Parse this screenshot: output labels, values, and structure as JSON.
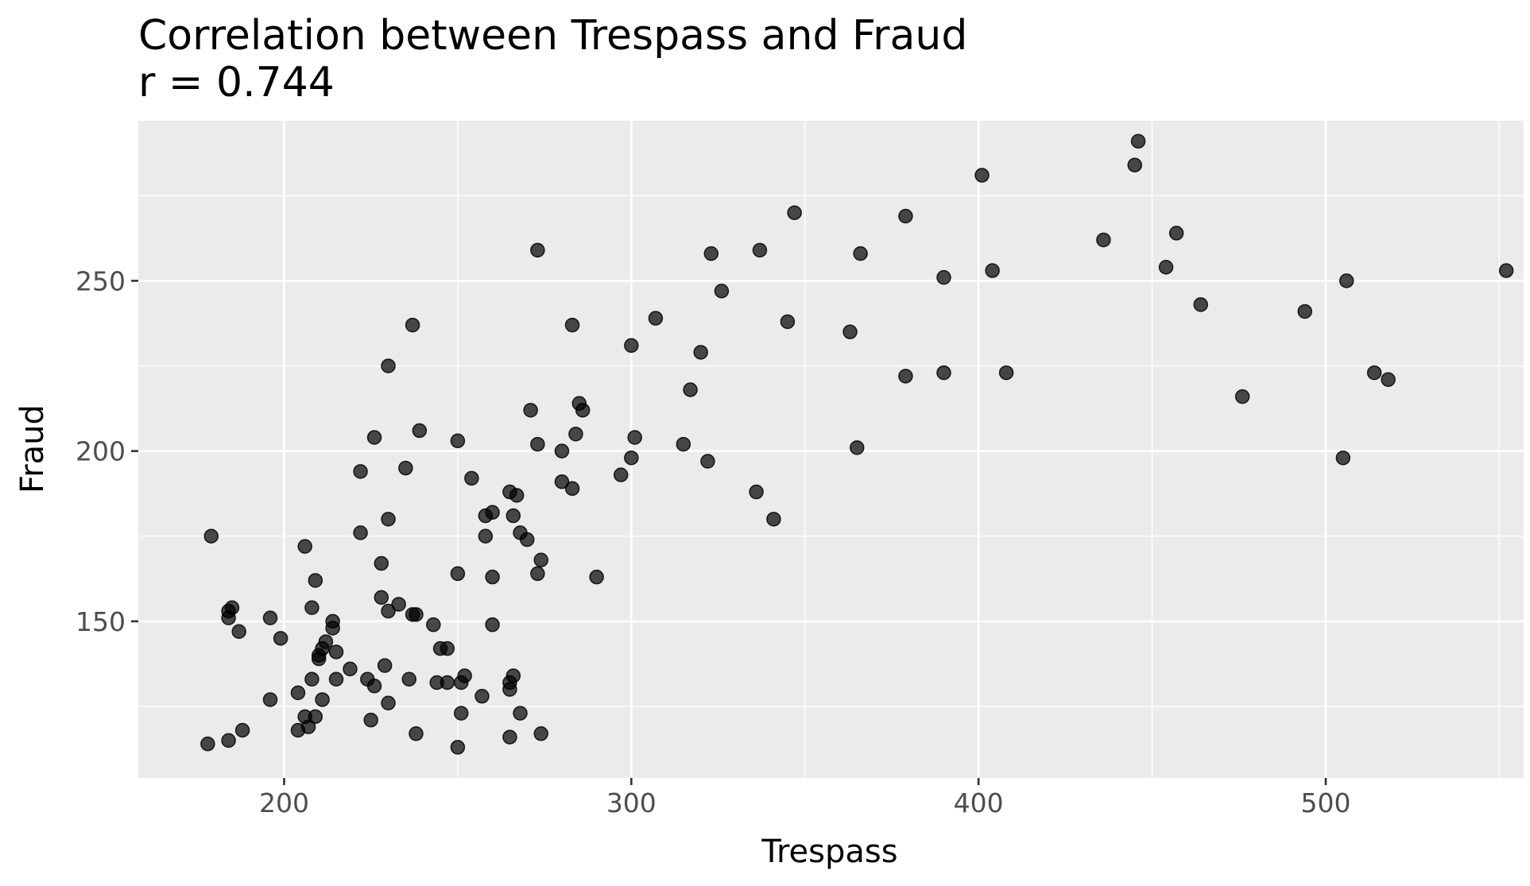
{
  "chart_data": {
    "type": "scatter",
    "title": "Correlation between Trespass and Fraud",
    "subtitle": "r = 0.744",
    "xlabel": "Trespass",
    "ylabel": "Fraud",
    "xlim": [
      158,
      557
    ],
    "ylim": [
      104,
      297
    ],
    "x_ticks": [
      200,
      300,
      400,
      500
    ],
    "y_ticks": [
      150,
      200,
      250
    ],
    "x_tick_labels": [
      "200",
      "300",
      "400",
      "500"
    ],
    "y_tick_labels": [
      "150",
      "200",
      "250"
    ],
    "grid": true,
    "background": "#ebebeb",
    "point_color": "#000000",
    "points": [
      [
        178,
        114
      ],
      [
        179,
        175
      ],
      [
        184,
        115
      ],
      [
        184,
        151
      ],
      [
        184,
        153
      ],
      [
        185,
        154
      ],
      [
        187,
        147
      ],
      [
        188,
        118
      ],
      [
        196,
        127
      ],
      [
        196,
        151
      ],
      [
        199,
        145
      ],
      [
        204,
        118
      ],
      [
        204,
        129
      ],
      [
        206,
        122
      ],
      [
        206,
        172
      ],
      [
        207,
        119
      ],
      [
        208,
        154
      ],
      [
        208,
        133
      ],
      [
        209,
        122
      ],
      [
        209,
        162
      ],
      [
        210,
        139
      ],
      [
        210,
        140
      ],
      [
        211,
        142
      ],
      [
        211,
        127
      ],
      [
        212,
        144
      ],
      [
        214,
        150
      ],
      [
        214,
        148
      ],
      [
        215,
        141
      ],
      [
        215,
        133
      ],
      [
        219,
        136
      ],
      [
        222,
        194
      ],
      [
        222,
        176
      ],
      [
        224,
        133
      ],
      [
        225,
        121
      ],
      [
        226,
        204
      ],
      [
        226,
        131
      ],
      [
        228,
        167
      ],
      [
        228,
        157
      ],
      [
        229,
        137
      ],
      [
        230,
        225
      ],
      [
        230,
        180
      ],
      [
        230,
        153
      ],
      [
        230,
        126
      ],
      [
        233,
        155
      ],
      [
        235,
        195
      ],
      [
        236,
        133
      ],
      [
        237,
        152
      ],
      [
        237,
        237
      ],
      [
        238,
        152
      ],
      [
        238,
        117
      ],
      [
        239,
        206
      ],
      [
        243,
        149
      ],
      [
        244,
        132
      ],
      [
        245,
        142
      ],
      [
        247,
        142
      ],
      [
        247,
        132
      ],
      [
        250,
        203
      ],
      [
        250,
        164
      ],
      [
        250,
        113
      ],
      [
        251,
        132
      ],
      [
        251,
        123
      ],
      [
        252,
        134
      ],
      [
        254,
        192
      ],
      [
        257,
        128
      ],
      [
        258,
        175
      ],
      [
        258,
        181
      ],
      [
        260,
        182
      ],
      [
        260,
        163
      ],
      [
        260,
        149
      ],
      [
        265,
        188
      ],
      [
        265,
        130
      ],
      [
        265,
        132
      ],
      [
        265,
        116
      ],
      [
        266,
        181
      ],
      [
        266,
        134
      ],
      [
        267,
        187
      ],
      [
        268,
        176
      ],
      [
        268,
        123
      ],
      [
        270,
        174
      ],
      [
        271,
        212
      ],
      [
        273,
        259
      ],
      [
        273,
        202
      ],
      [
        273,
        164
      ],
      [
        274,
        168
      ],
      [
        274,
        117
      ],
      [
        280,
        200
      ],
      [
        280,
        191
      ],
      [
        283,
        237
      ],
      [
        283,
        189
      ],
      [
        284,
        205
      ],
      [
        285,
        214
      ],
      [
        286,
        212
      ],
      [
        290,
        163
      ],
      [
        297,
        193
      ],
      [
        300,
        231
      ],
      [
        300,
        198
      ],
      [
        301,
        204
      ],
      [
        307,
        239
      ],
      [
        315,
        202
      ],
      [
        317,
        218
      ],
      [
        320,
        229
      ],
      [
        322,
        197
      ],
      [
        323,
        258
      ],
      [
        326,
        247
      ],
      [
        336,
        188
      ],
      [
        337,
        259
      ],
      [
        345,
        238
      ],
      [
        341,
        180
      ],
      [
        347,
        270
      ],
      [
        363,
        235
      ],
      [
        365,
        201
      ],
      [
        366,
        258
      ],
      [
        379,
        222
      ],
      [
        379,
        269
      ],
      [
        390,
        223
      ],
      [
        390,
        251
      ],
      [
        401,
        281
      ],
      [
        404,
        253
      ],
      [
        408,
        223
      ],
      [
        436,
        262
      ],
      [
        445,
        284
      ],
      [
        446,
        291
      ],
      [
        454,
        254
      ],
      [
        457,
        264
      ],
      [
        464,
        243
      ],
      [
        476,
        216
      ],
      [
        494,
        241
      ],
      [
        505,
        198
      ],
      [
        506,
        250
      ],
      [
        514,
        223
      ],
      [
        518,
        221
      ],
      [
        552,
        253
      ]
    ]
  }
}
